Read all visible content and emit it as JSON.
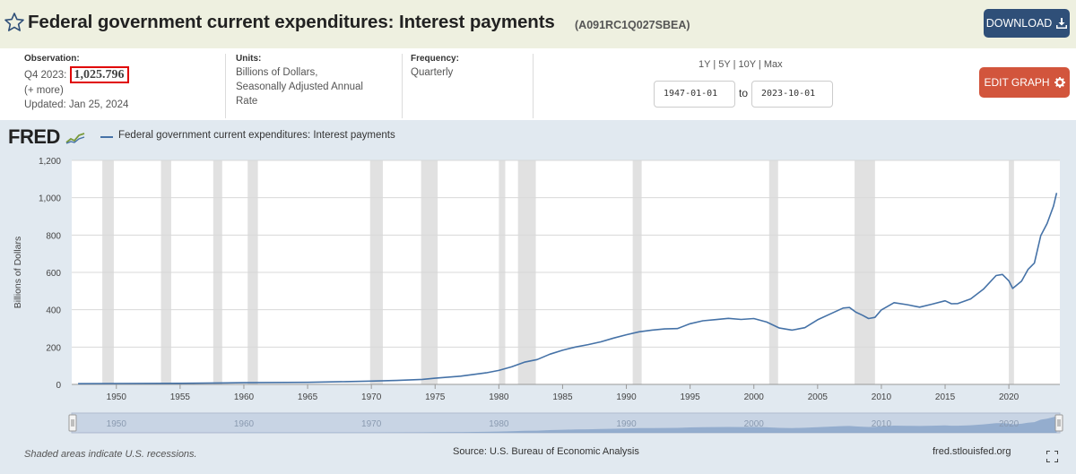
{
  "header": {
    "title": "Federal government current expenditures: Interest payments",
    "series_id": "(A091RC1Q027SBEA)",
    "download_label": "DOWNLOAD"
  },
  "info": {
    "observation_label": "Observation:",
    "observation_period": "Q4 2023:",
    "observation_value": "1,025.796",
    "more_label": "(+ more)",
    "updated": "Updated: Jan 25, 2024",
    "units_label": "Units:",
    "units_lines": [
      "Billions of Dollars,",
      "Seasonally Adjusted Annual",
      "Rate"
    ],
    "frequency_label": "Frequency:",
    "frequency_value": "Quarterly",
    "range_links": [
      "1Y",
      "5Y",
      "10Y",
      "Max"
    ],
    "start_date": "1947-01-01",
    "to_label": "to",
    "end_date": "2023-10-01",
    "edit_label": "EDIT GRAPH"
  },
  "graph": {
    "logo": "FRED",
    "recession_note": "Shaded areas indicate U.S. recessions.",
    "source": "Source: U.S. Bureau of Economic Analysis",
    "url": "fred.stlouisfed.org"
  },
  "colors": {
    "line": "#4572a7",
    "recession": "#e1e1e1",
    "download_btn": "#2f4f78",
    "edit_btn": "#d2553c",
    "header_bg": "#eef0e0",
    "graph_bg": "#e1e9f0"
  },
  "chart_data": {
    "type": "line",
    "series": [
      {
        "name": "Federal government current expenditures: Interest payments",
        "x": [
          1947,
          1950,
          1955,
          1960,
          1965,
          1968,
          1970,
          1972,
          1974,
          1975,
          1977,
          1979,
          1980,
          1981,
          1982,
          1983,
          1984,
          1985,
          1986,
          1987,
          1988,
          1989,
          1990,
          1991,
          1992,
          1993,
          1994,
          1995,
          1996,
          1997,
          1998,
          1999,
          2000,
          2001,
          2002,
          2003,
          2004,
          2005,
          2006,
          2007,
          2007.5,
          2008,
          2008.5,
          2009,
          2009.5,
          2010,
          2011,
          2012,
          2013,
          2014,
          2015,
          2015.5,
          2016,
          2017,
          2018,
          2019,
          2019.5,
          2020,
          2020.3,
          2021,
          2021.5,
          2022,
          2022.5,
          2023,
          2023.5,
          2023.75
        ],
        "y": [
          4,
          5,
          6,
          9,
          11,
          15,
          18,
          21,
          27,
          33,
          44,
          62,
          75,
          94,
          119,
          133,
          162,
          183,
          200,
          213,
          228,
          248,
          266,
          282,
          291,
          297,
          299,
          325,
          341,
          347,
          354,
          348,
          353,
          334,
          302,
          291,
          304,
          346,
          378,
          409,
          412,
          387,
          371,
          353,
          359,
          399,
          438,
          427,
          414,
          430,
          448,
          432,
          433,
          458,
          510,
          583,
          589,
          555,
          514,
          553,
          616,
          650,
          797,
          862,
          955,
          1026
        ]
      }
    ],
    "xlim": [
      1946.5,
      2024
    ],
    "ylim": [
      0,
      1200
    ],
    "yticks": [
      0,
      200,
      400,
      600,
      800,
      1000,
      1200
    ],
    "ytick_labels": [
      "0",
      "200",
      "400",
      "600",
      "800",
      "1,000",
      "1,200"
    ],
    "xticks": [
      1950,
      1955,
      1960,
      1965,
      1970,
      1975,
      1980,
      1985,
      1990,
      1995,
      2000,
      2005,
      2010,
      2015,
      2020
    ],
    "ylabel": "Billions of Dollars",
    "recessions": [
      [
        1948.9,
        1949.8
      ],
      [
        1953.5,
        1954.3
      ],
      [
        1957.6,
        1958.3
      ],
      [
        1960.3,
        1961.1
      ],
      [
        1969.9,
        1970.9
      ],
      [
        1973.9,
        1975.2
      ],
      [
        1980.0,
        1980.5
      ],
      [
        1981.5,
        1982.9
      ],
      [
        1990.5,
        1991.2
      ],
      [
        2001.2,
        2001.9
      ],
      [
        2007.9,
        2009.5
      ],
      [
        2020.0,
        2020.4
      ]
    ],
    "navigator_ticks": [
      1950,
      1960,
      1970,
      1980,
      1990,
      2000,
      2010,
      2020
    ],
    "grid": true,
    "legend": "top-left"
  }
}
